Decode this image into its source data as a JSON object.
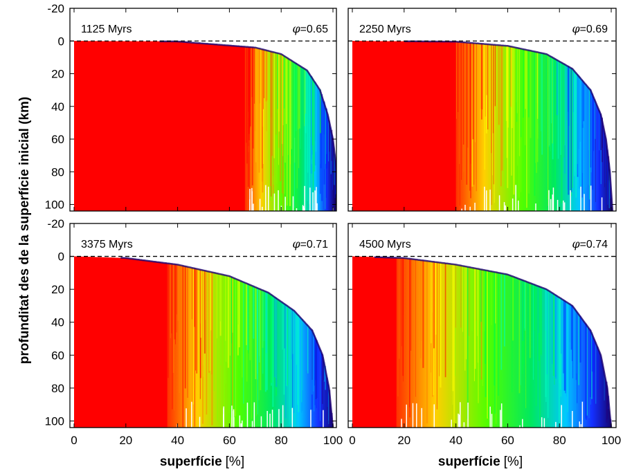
{
  "chart_data": {
    "type": "heatmap",
    "ylabel": "profunditat des de la superfície inicial (km)",
    "xlabel": "superfície",
    "xlabel_unit": "[%]",
    "xlim": [
      0,
      105
    ],
    "ylim": [
      -20,
      104
    ],
    "y_inverted": true,
    "x_ticks": [
      "0",
      "20",
      "40",
      "60",
      "80",
      "100"
    ],
    "y_ticks": [
      "-20",
      "0",
      "20",
      "40",
      "60",
      "80",
      "100"
    ],
    "colormap": [
      "#ff0000",
      "#ffff00",
      "#00ff00",
      "#00ffff",
      "#0000ff",
      "#000000"
    ],
    "panels": [
      {
        "label": "1125 Myrs",
        "phi": "=0.65",
        "red_until": 66,
        "profile": [
          [
            0,
            0
          ],
          [
            40,
            0.3
          ],
          [
            70,
            4
          ],
          [
            80,
            8
          ],
          [
            90,
            18
          ],
          [
            95,
            30
          ],
          [
            98,
            45
          ],
          [
            100,
            60
          ],
          [
            101.5,
            80
          ],
          [
            102.5,
            104
          ]
        ]
      },
      {
        "label": "2250 Myrs",
        "phi": "=0.69",
        "red_until": 40,
        "profile": [
          [
            0,
            0
          ],
          [
            40,
            0.4
          ],
          [
            60,
            3
          ],
          [
            75,
            8
          ],
          [
            85,
            17
          ],
          [
            92,
            30
          ],
          [
            96,
            45
          ],
          [
            98,
            60
          ],
          [
            99.5,
            80
          ],
          [
            100.5,
            104
          ]
        ]
      },
      {
        "label": "3375 Myrs",
        "phi": "=0.71",
        "red_until": 36,
        "profile": [
          [
            0,
            0
          ],
          [
            20,
            1
          ],
          [
            40,
            5
          ],
          [
            60,
            12
          ],
          [
            75,
            22
          ],
          [
            85,
            33
          ],
          [
            92,
            45
          ],
          [
            96,
            60
          ],
          [
            98.5,
            80
          ],
          [
            100,
            104
          ]
        ]
      },
      {
        "label": "4500 Myrs",
        "phi": "=0.74",
        "red_until": 17,
        "profile": [
          [
            0,
            0
          ],
          [
            20,
            1
          ],
          [
            40,
            5
          ],
          [
            60,
            11
          ],
          [
            75,
            20
          ],
          [
            85,
            30
          ],
          [
            92,
            45
          ],
          [
            96,
            60
          ],
          [
            98.5,
            80
          ],
          [
            100,
            104
          ]
        ]
      }
    ]
  }
}
